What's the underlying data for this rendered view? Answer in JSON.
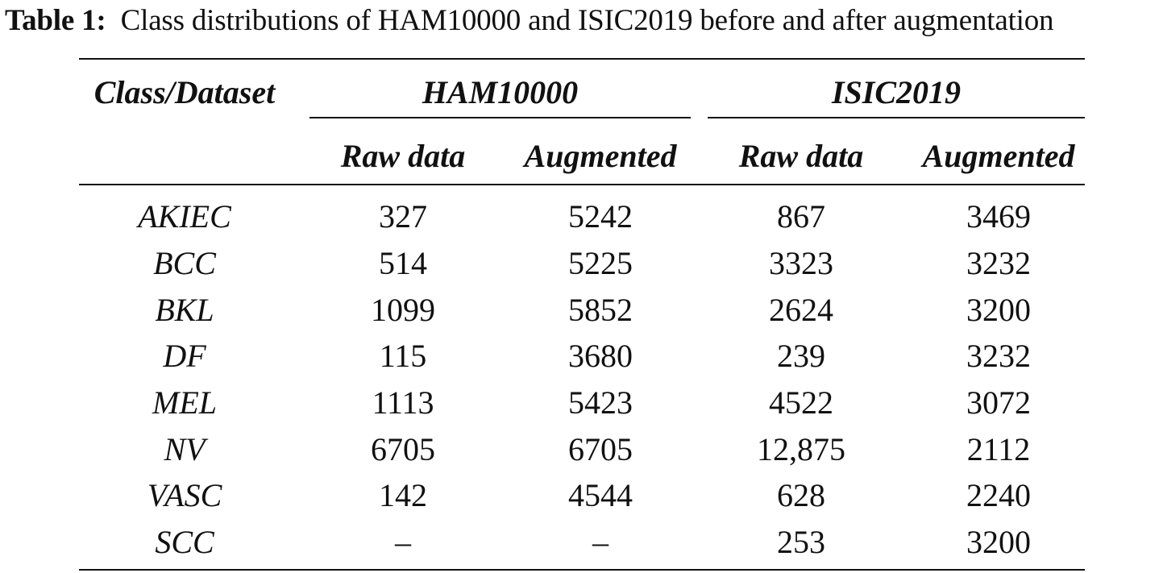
{
  "caption": {
    "label": "Table 1:",
    "text": "Class distributions of HAM10000 and ISIC2019 before and after augmentation"
  },
  "header": {
    "class_dataset": "Class/Dataset",
    "groups": [
      "HAM10000",
      "ISIC2019"
    ],
    "subcolumns": [
      "Raw data",
      "Augmented",
      "Raw data",
      "Augmented"
    ]
  },
  "rows": [
    {
      "class": "AKIEC",
      "values": [
        "327",
        "5242",
        "867",
        "3469"
      ]
    },
    {
      "class": "BCC",
      "values": [
        "514",
        "5225",
        "3323",
        "3232"
      ]
    },
    {
      "class": "BKL",
      "values": [
        "1099",
        "5852",
        "2624",
        "3200"
      ]
    },
    {
      "class": "DF",
      "values": [
        "115",
        "3680",
        "239",
        "3232"
      ]
    },
    {
      "class": "MEL",
      "values": [
        "1113",
        "5423",
        "4522",
        "3072"
      ]
    },
    {
      "class": "NV",
      "values": [
        "6705",
        "6705",
        "12,875",
        "2112"
      ]
    },
    {
      "class": "VASC",
      "values": [
        "142",
        "4544",
        "628",
        "2240"
      ]
    },
    {
      "class": "SCC",
      "values": [
        "–",
        "–",
        "253",
        "3200"
      ]
    }
  ]
}
